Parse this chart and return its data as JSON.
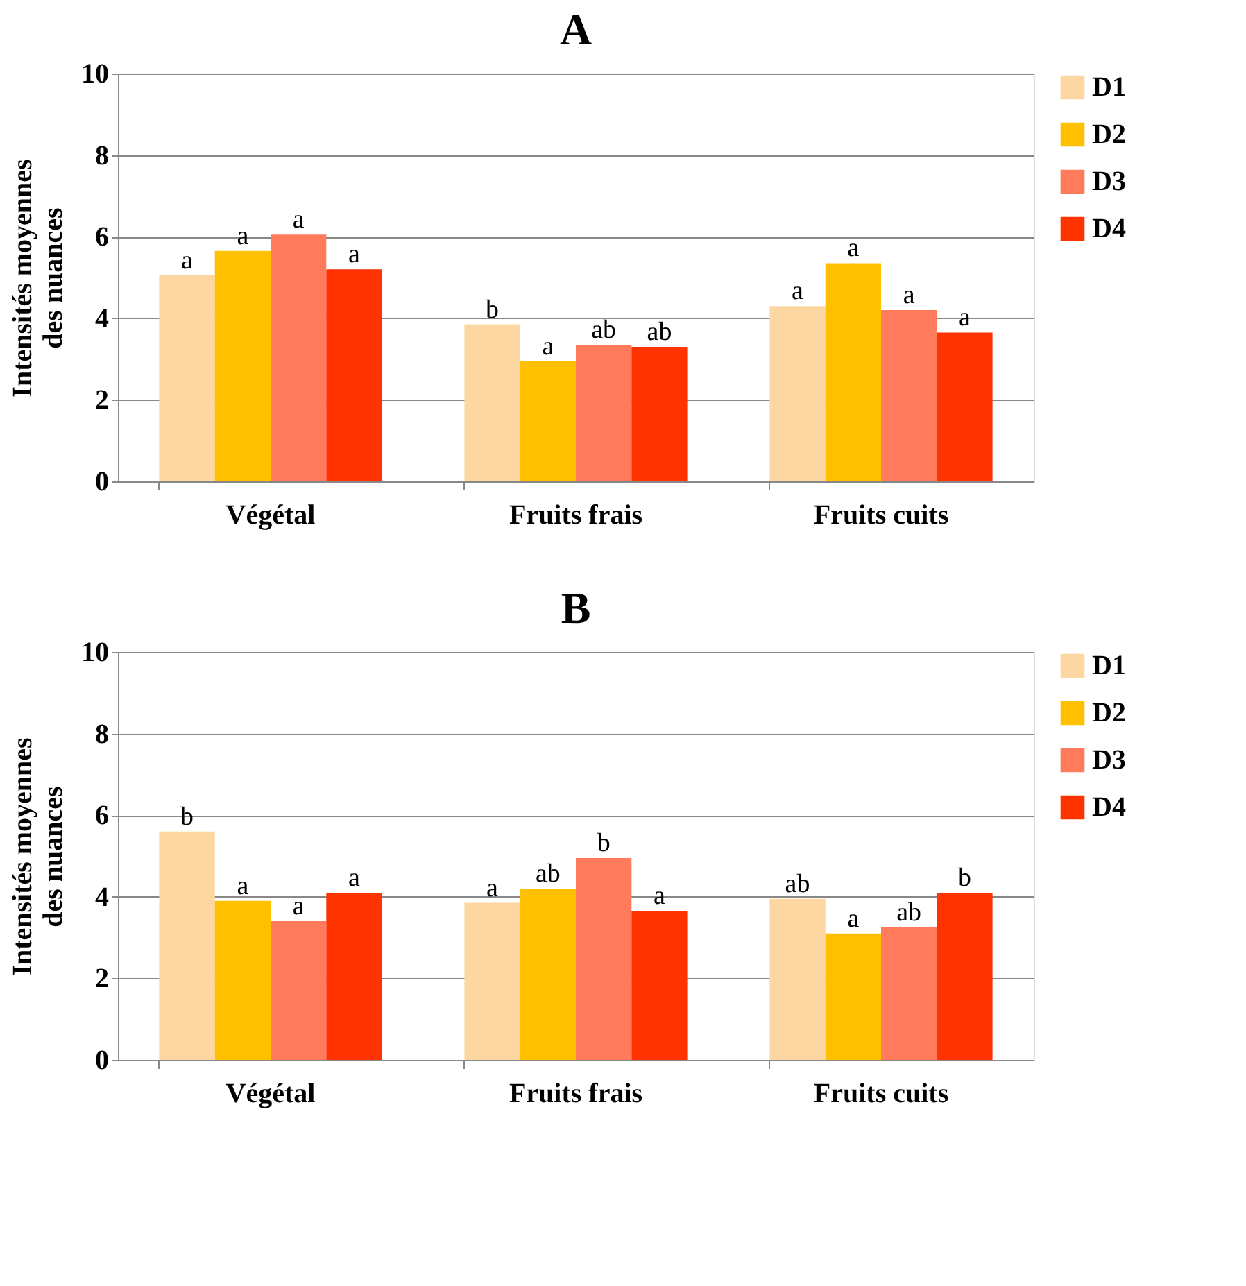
{
  "chart_data": [
    {
      "type": "bar",
      "title": "A",
      "ylabel": "Intensités moyennes des nuances",
      "categories": [
        "Végétal",
        "Fruits frais",
        "Fruits cuits"
      ],
      "ylim": [
        0,
        10
      ],
      "yticks": [
        0,
        2,
        4,
        6,
        8,
        10
      ],
      "grid": "y",
      "legend": "right",
      "series": [
        {
          "name": "D1",
          "color": "#fcd7a1",
          "values": [
            5.05,
            3.85,
            4.3
          ],
          "value_labels": [
            "a",
            "b",
            "a"
          ]
        },
        {
          "name": "D2",
          "color": "#ffc000",
          "values": [
            5.65,
            2.95,
            5.35
          ],
          "value_labels": [
            "a",
            "a",
            "a"
          ]
        },
        {
          "name": "D3",
          "color": "#ff7b5c",
          "values": [
            6.05,
            3.35,
            4.2
          ],
          "value_labels": [
            "a",
            "ab",
            "a"
          ]
        },
        {
          "name": "D4",
          "color": "#ff3300",
          "values": [
            5.2,
            3.3,
            3.65
          ],
          "value_labels": [
            "a",
            "ab",
            "a"
          ]
        }
      ]
    },
    {
      "type": "bar",
      "title": "B",
      "ylabel": "Intensités moyennes des nuances",
      "categories": [
        "Végétal",
        "Fruits frais",
        "Fruits cuits"
      ],
      "ylim": [
        0,
        10
      ],
      "yticks": [
        0,
        2,
        4,
        6,
        8,
        10
      ],
      "grid": "y",
      "legend": "right",
      "series": [
        {
          "name": "D1",
          "color": "#fcd7a1",
          "values": [
            5.6,
            3.85,
            3.95
          ],
          "value_labels": [
            "b",
            "a",
            "ab"
          ]
        },
        {
          "name": "D2",
          "color": "#ffc000",
          "values": [
            3.9,
            4.2,
            3.1
          ],
          "value_labels": [
            "a",
            "ab",
            "a"
          ]
        },
        {
          "name": "D3",
          "color": "#ff7b5c",
          "values": [
            3.4,
            4.95,
            3.25
          ],
          "value_labels": [
            "a",
            "b",
            "ab"
          ]
        },
        {
          "name": "D4",
          "color": "#ff3300",
          "values": [
            4.1,
            3.65,
            4.1
          ],
          "value_labels": [
            "a",
            "a",
            "b"
          ]
        }
      ]
    }
  ]
}
